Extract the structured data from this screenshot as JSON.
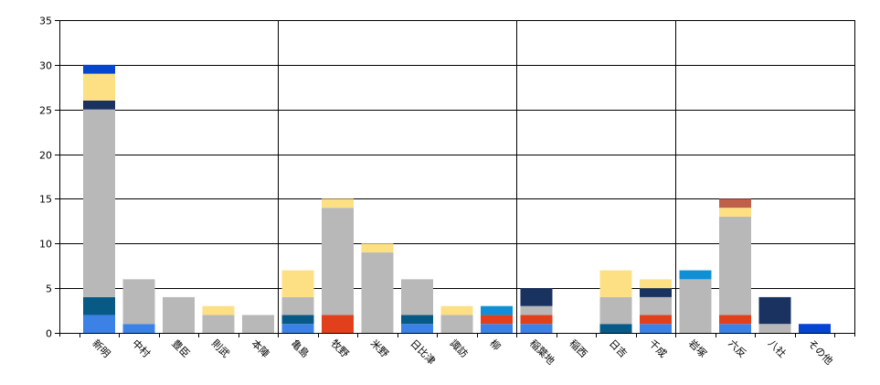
{
  "chart_data": {
    "type": "bar",
    "stacked": true,
    "title": "",
    "xlabel": "",
    "ylabel": "",
    "ylim": [
      0,
      35
    ],
    "y_ticks": [
      0,
      5,
      10,
      15,
      20,
      25,
      30,
      35
    ],
    "vertical_gridlines_after_categories": [
      "本陣",
      "柳",
      "千成"
    ],
    "grid": true,
    "legend": "none",
    "categories": [
      "新明",
      "中村",
      "豊臣",
      "則武",
      "本陣",
      "亀島",
      "牧野",
      "米野",
      "日比津",
      "諏訪",
      "柳",
      "稲葉地",
      "稲西",
      "日吉",
      "千成",
      "岩塚",
      "六反",
      "八社",
      "その他"
    ],
    "series": [
      {
        "color": "#3c82e6",
        "values": [
          2,
          1,
          0,
          0,
          0,
          1,
          0,
          0,
          1,
          0,
          1,
          1,
          0,
          0,
          1,
          0,
          1,
          0,
          0
        ]
      },
      {
        "color": "#e2401c",
        "values": [
          0,
          0,
          0,
          0,
          0,
          0,
          2,
          0,
          0,
          0,
          1,
          1,
          0,
          0,
          1,
          0,
          1,
          0,
          0
        ]
      },
      {
        "color": "#075a85",
        "values": [
          2,
          0,
          0,
          0,
          0,
          1,
          0,
          0,
          1,
          0,
          0,
          0,
          0,
          1,
          0,
          0,
          0,
          0,
          0
        ]
      },
      {
        "color": "#b8b8b8",
        "values": [
          21,
          5,
          4,
          2,
          2,
          2,
          12,
          9,
          4,
          2,
          0,
          1,
          0,
          3,
          2,
          6,
          11,
          1,
          0
        ]
      },
      {
        "color": "#1a3260",
        "values": [
          1,
          0,
          0,
          0,
          0,
          0,
          0,
          0,
          0,
          0,
          0,
          2,
          0,
          0,
          1,
          0,
          0,
          3,
          0
        ]
      },
      {
        "color": "#fde084",
        "values": [
          3,
          0,
          0,
          1,
          0,
          3,
          1,
          1,
          0,
          1,
          0,
          0,
          0,
          3,
          1,
          0,
          1,
          0,
          0
        ]
      },
      {
        "color": "#0f90d6",
        "values": [
          0,
          0,
          0,
          0,
          0,
          0,
          0,
          0,
          0,
          0,
          1,
          0,
          0,
          0,
          0,
          1,
          0,
          0,
          0
        ]
      },
      {
        "color": "#c0604a",
        "values": [
          0,
          0,
          0,
          0,
          0,
          0,
          0,
          0,
          0,
          0,
          0,
          0,
          0,
          0,
          0,
          0,
          1,
          0,
          0
        ]
      },
      {
        "color": "#0645d2",
        "values": [
          1,
          0,
          0,
          0,
          0,
          0,
          0,
          0,
          0,
          0,
          0,
          0,
          0,
          0,
          0,
          0,
          0,
          0,
          1
        ]
      }
    ]
  }
}
